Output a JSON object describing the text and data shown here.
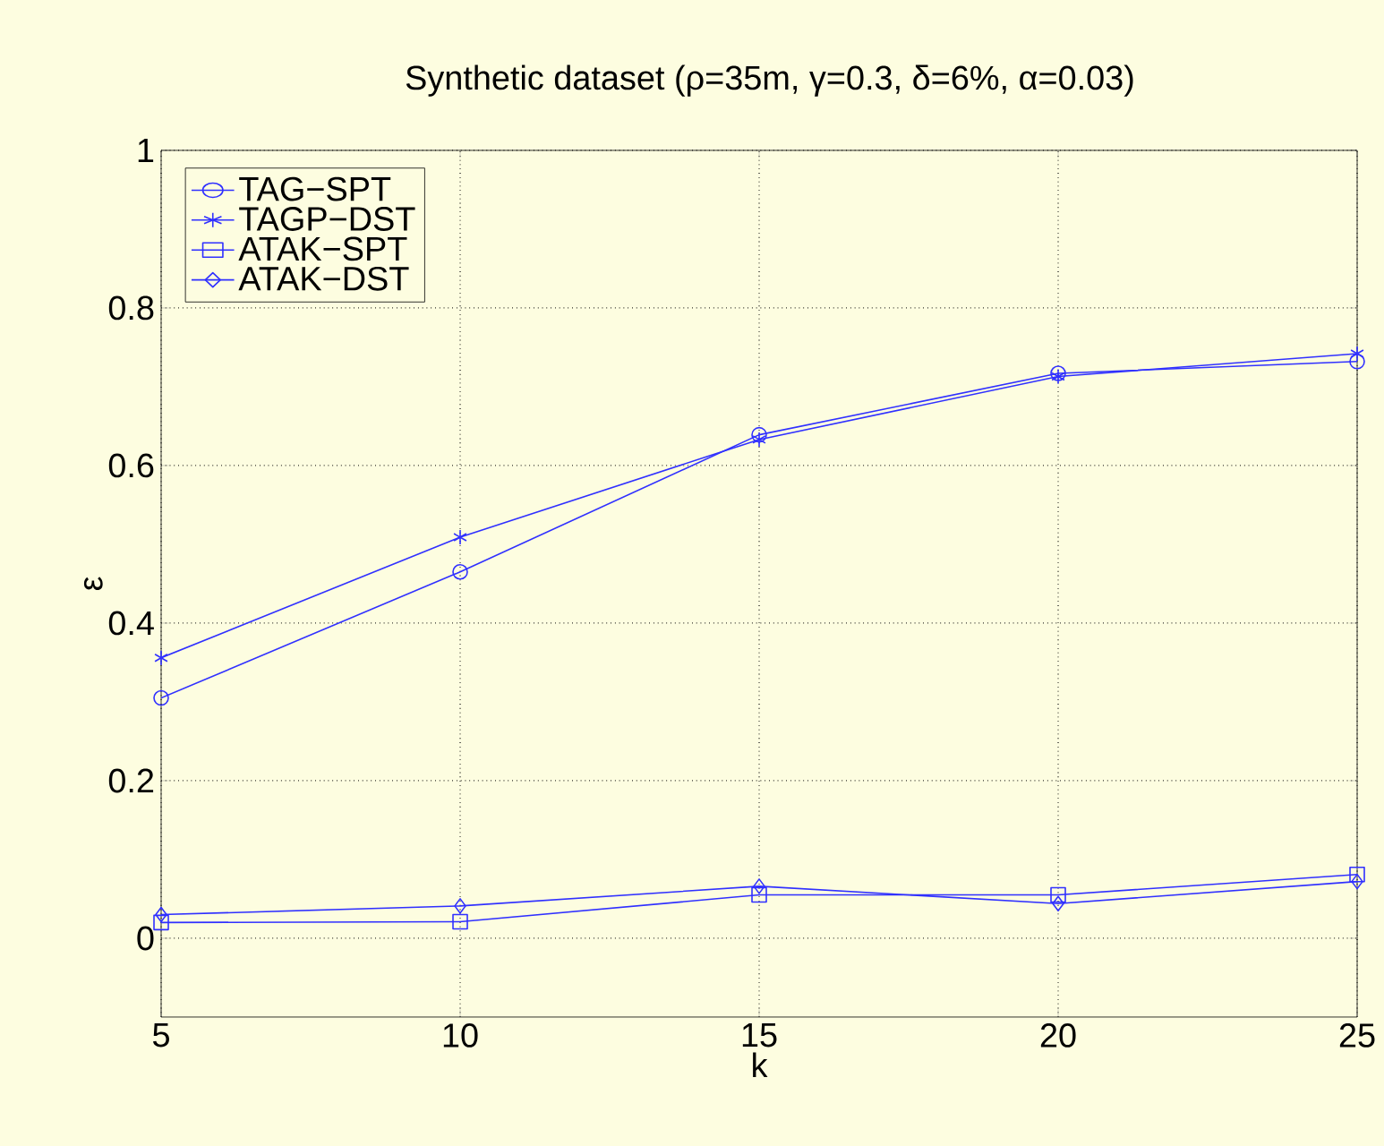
{
  "chart_data": {
    "type": "line",
    "title": "Synthetic dataset (ρ=35m, γ=0.3, δ=6%, α=0.03)",
    "xlabel": "k",
    "ylabel": "ε",
    "x": [
      5,
      10,
      15,
      20,
      25
    ],
    "series": [
      {
        "name": "TAG−SPT",
        "color": "#3030ff",
        "marker": "circle",
        "values": [
          0.305,
          0.465,
          0.639,
          0.717,
          0.732
        ]
      },
      {
        "name": "TAGP−DST",
        "color": "#3030ff",
        "marker": "cross",
        "values": [
          0.356,
          0.509,
          0.633,
          0.713,
          0.742
        ]
      },
      {
        "name": "ATAK−SPT",
        "color": "#3030ff",
        "marker": "square",
        "values": [
          0.02,
          0.021,
          0.055,
          0.055,
          0.081
        ]
      },
      {
        "name": "ATAK−DST",
        "color": "#3030ff",
        "marker": "diamond",
        "values": [
          0.03,
          0.041,
          0.066,
          0.044,
          0.072
        ]
      }
    ],
    "xlim": [
      5,
      25
    ],
    "xticks": [
      5,
      10,
      15,
      20,
      25
    ],
    "ylim": [
      -0.1,
      1
    ],
    "yticks": [
      0,
      0.2,
      0.4,
      0.6,
      0.8,
      1
    ],
    "grid": true,
    "legend": "top left",
    "line_style": "solid"
  }
}
